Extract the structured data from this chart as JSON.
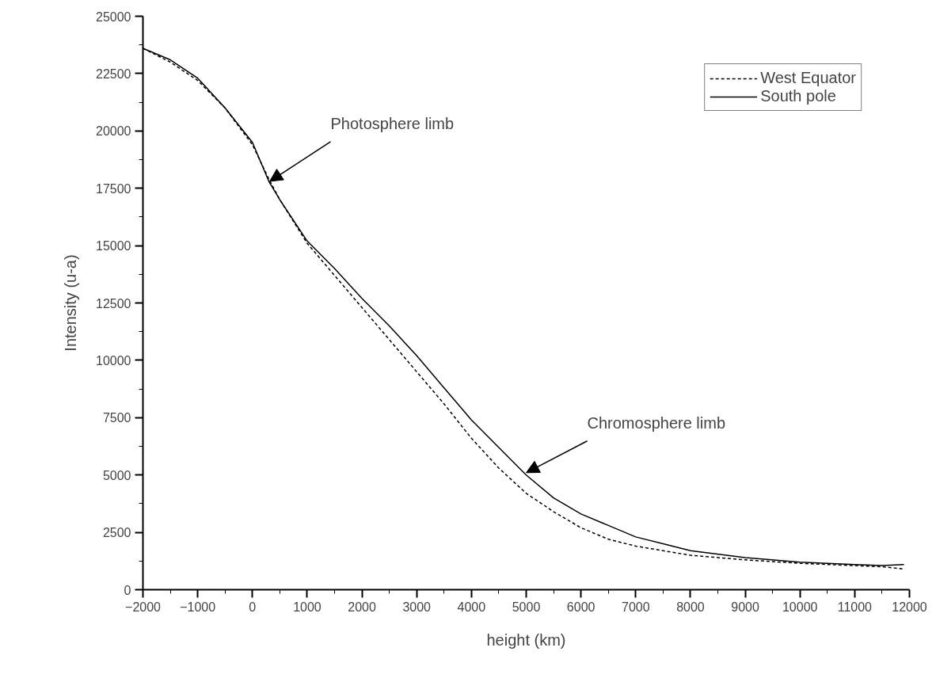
{
  "chart_data": {
    "type": "line",
    "xlabel": "height (km)",
    "ylabel": "Intensity (u-a)",
    "xlim": [
      -2000,
      12000
    ],
    "xticks": [
      -2000,
      -1000,
      0,
      1000,
      2000,
      3000,
      4000,
      5000,
      6000,
      7000,
      8000,
      9000,
      10000,
      11000,
      12000
    ],
    "ylim": [
      0,
      25000
    ],
    "yticks": [
      0,
      2500,
      5000,
      7500,
      10000,
      12500,
      15000,
      17500,
      20000,
      22500,
      25000
    ],
    "grid": false,
    "legend": "top right",
    "marker": "none",
    "x": [
      -2000,
      -1500,
      -1000,
      -500,
      0,
      300,
      500,
      1000,
      1500,
      2000,
      2500,
      3000,
      3500,
      4000,
      4500,
      5000,
      5500,
      6000,
      6500,
      7000,
      7500,
      8000,
      9000,
      10000,
      11000,
      11500,
      11900
    ],
    "series": [
      {
        "name": "West Equator",
        "color": "#000000",
        "line_style": "dashed",
        "values": [
          23600,
          23000,
          22200,
          21000,
          19400,
          17900,
          17000,
          15100,
          13700,
          12300,
          10900,
          9500,
          8100,
          6600,
          5300,
          4200,
          3400,
          2700,
          2200,
          1900,
          1700,
          1500,
          1300,
          1150,
          1050,
          1000,
          900
        ]
      },
      {
        "name": "South pole",
        "color": "#000000",
        "line_style": "solid",
        "values": [
          23600,
          23100,
          22300,
          21000,
          19500,
          17800,
          17000,
          15200,
          14000,
          12700,
          11500,
          10200,
          8800,
          7400,
          6200,
          5000,
          4000,
          3300,
          2800,
          2300,
          2000,
          1700,
          1400,
          1200,
          1100,
          1050,
          1100
        ]
      }
    ],
    "annotations": [
      {
        "text": "Photosphere limb",
        "x": 314,
        "y": 17800
      },
      {
        "text": "Chromosphere limb",
        "x": 5000,
        "y": 5100
      }
    ]
  }
}
